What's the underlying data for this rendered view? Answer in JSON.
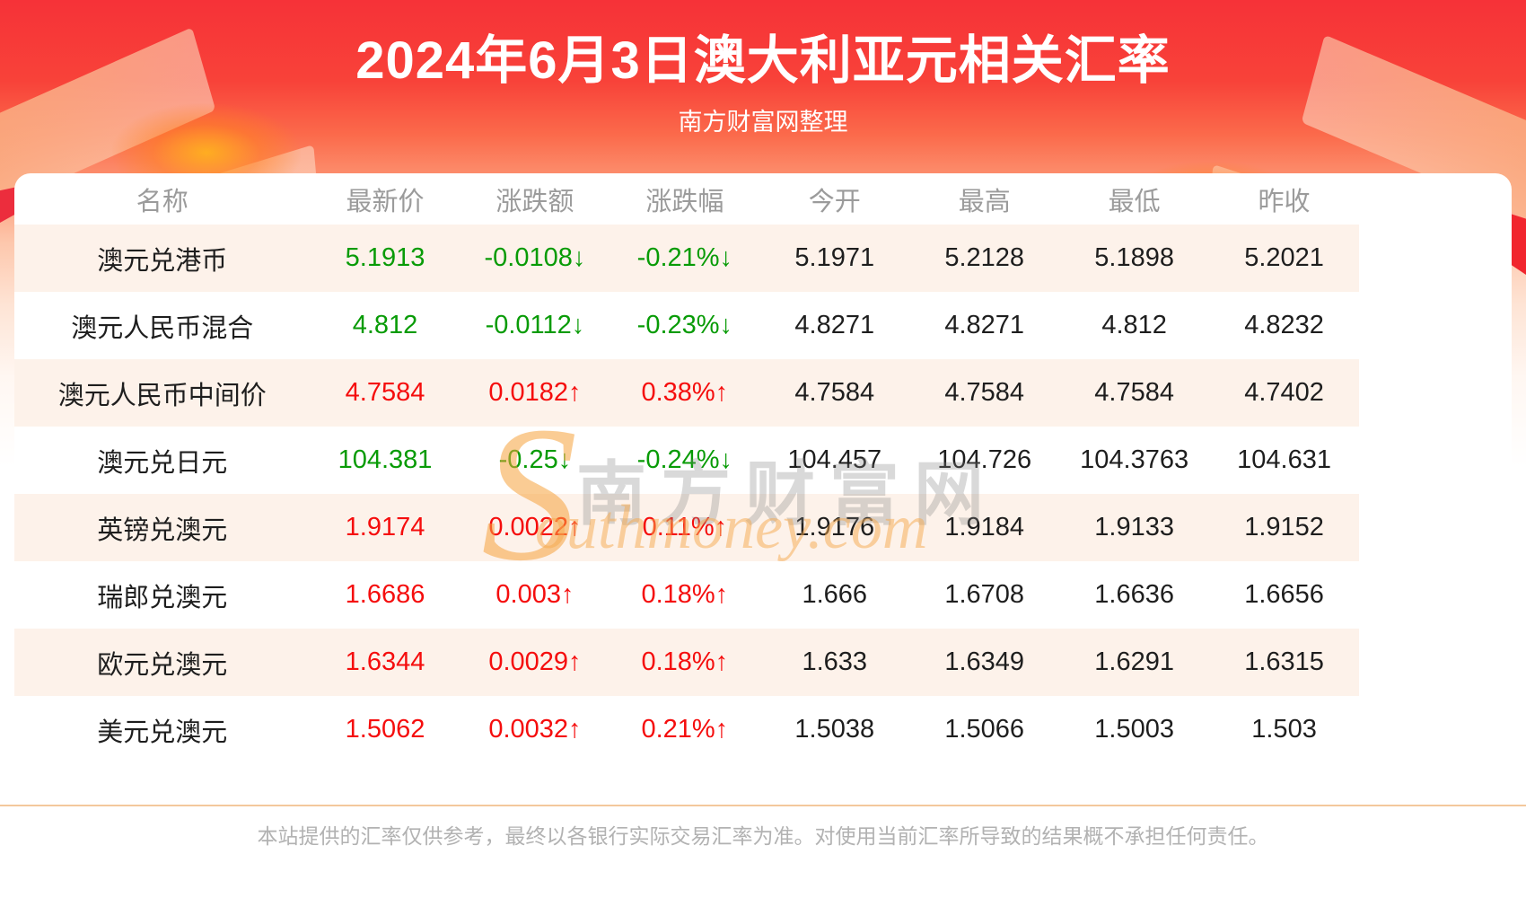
{
  "header": {
    "title": "2024年6月3日澳大利亚元相关汇率",
    "subtitle": "南方财富网整理"
  },
  "table": {
    "columns": [
      "名称",
      "最新价",
      "涨跌额",
      "涨跌幅",
      "今开",
      "最高",
      "最低",
      "昨收"
    ],
    "rows": [
      {
        "name": "澳元兑港币",
        "latest": "5.1913",
        "change": "-0.0108↓",
        "change_pct": "-0.21%↓",
        "open": "5.1971",
        "high": "5.2128",
        "low": "5.1898",
        "prev_close": "5.2021",
        "trend": "down"
      },
      {
        "name": "澳元人民币混合",
        "latest": "4.812",
        "change": "-0.0112↓",
        "change_pct": "-0.23%↓",
        "open": "4.8271",
        "high": "4.8271",
        "low": "4.812",
        "prev_close": "4.8232",
        "trend": "down"
      },
      {
        "name": "澳元人民币中间价",
        "latest": "4.7584",
        "change": "0.0182↑",
        "change_pct": "0.38%↑",
        "open": "4.7584",
        "high": "4.7584",
        "low": "4.7584",
        "prev_close": "4.7402",
        "trend": "up"
      },
      {
        "name": "澳元兑日元",
        "latest": "104.381",
        "change": "-0.25↓",
        "change_pct": "-0.24%↓",
        "open": "104.457",
        "high": "104.726",
        "low": "104.3763",
        "prev_close": "104.631",
        "trend": "down"
      },
      {
        "name": "英镑兑澳元",
        "latest": "1.9174",
        "change": "0.0022↑",
        "change_pct": "0.11%↑",
        "open": "1.9176",
        "high": "1.9184",
        "low": "1.9133",
        "prev_close": "1.9152",
        "trend": "up"
      },
      {
        "name": "瑞郎兑澳元",
        "latest": "1.6686",
        "change": "0.003↑",
        "change_pct": "0.18%↑",
        "open": "1.666",
        "high": "1.6708",
        "low": "1.6636",
        "prev_close": "1.6656",
        "trend": "up"
      },
      {
        "name": "欧元兑澳元",
        "latest": "1.6344",
        "change": "0.0029↑",
        "change_pct": "0.18%↑",
        "open": "1.633",
        "high": "1.6349",
        "low": "1.6291",
        "prev_close": "1.6315",
        "trend": "up"
      },
      {
        "name": "美元兑澳元",
        "latest": "1.5062",
        "change": "0.0032↑",
        "change_pct": "0.21%↑",
        "open": "1.5038",
        "high": "1.5066",
        "low": "1.5003",
        "prev_close": "1.503",
        "trend": "up"
      }
    ]
  },
  "watermark": {
    "initial": "S",
    "cn": "南方财富网",
    "en": "outhmoney.com"
  },
  "footer": {
    "disclaimer": "本站提供的汇率仅供参考，最终以各银行实际交易汇率为准。对使用当前汇率所导致的结果概不承担任何责任。"
  },
  "colors": {
    "up_red": "#f50d0d",
    "down_green": "#089b06",
    "banner_red": "#f63238",
    "row_stripe": "#fdf2ea",
    "divider_tan": "#f3c89c"
  }
}
